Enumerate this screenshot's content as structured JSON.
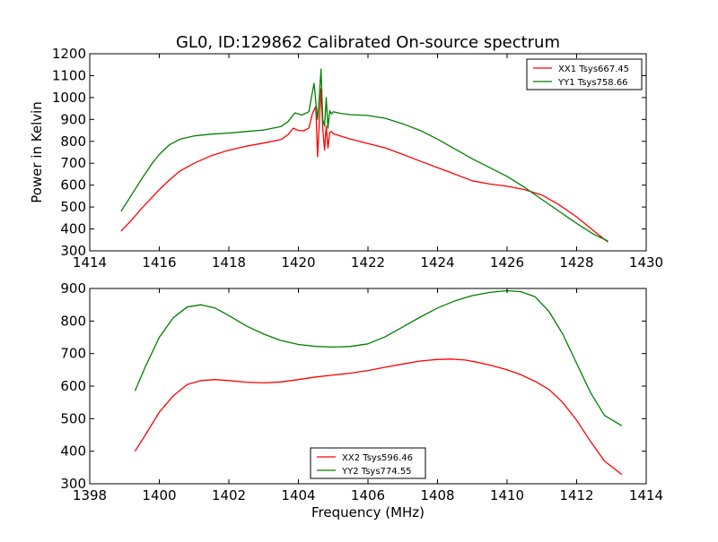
{
  "figure": {
    "title": "GL0, ID:129862 Calibrated On-source spectrum",
    "background": "#ffffff"
  },
  "chart_data": [
    {
      "type": "line",
      "title": "GL0, ID:129862 Calibrated On-source spectrum",
      "xlabel": "",
      "ylabel": "Power in Kelvin",
      "xlim": [
        1414,
        1430
      ],
      "ylim": [
        300,
        1200
      ],
      "xticks": [
        1414,
        1416,
        1418,
        1420,
        1422,
        1424,
        1426,
        1428,
        1430
      ],
      "yticks": [
        300,
        400,
        500,
        600,
        700,
        800,
        900,
        1000,
        1100,
        1200
      ],
      "grid": false,
      "legend": "top-right",
      "series": [
        {
          "name": "XX1 Tsys667.45",
          "color": "#ff0000",
          "x": [
            1414.9,
            1415.2,
            1415.5,
            1415.8,
            1416.0,
            1416.3,
            1416.6,
            1417.0,
            1417.5,
            1418.0,
            1418.5,
            1419.0,
            1419.5,
            1419.7,
            1419.85,
            1420.0,
            1420.15,
            1420.3,
            1420.4,
            1420.5,
            1420.55,
            1420.6,
            1420.65,
            1420.7,
            1420.75,
            1420.8,
            1420.85,
            1420.9,
            1420.95,
            1421.0,
            1421.2,
            1421.5,
            1422.0,
            1422.5,
            1423.0,
            1423.5,
            1424.0,
            1424.5,
            1425.0,
            1425.5,
            1426.0,
            1426.5,
            1427.0,
            1427.5,
            1428.0,
            1428.5,
            1428.9
          ],
          "y": [
            390,
            440,
            495,
            545,
            580,
            625,
            665,
            700,
            735,
            760,
            778,
            792,
            808,
            830,
            860,
            850,
            848,
            860,
            925,
            960,
            730,
            880,
            1040,
            860,
            760,
            870,
            770,
            840,
            845,
            835,
            825,
            810,
            790,
            770,
            740,
            710,
            680,
            650,
            620,
            605,
            595,
            580,
            555,
            510,
            455,
            390,
            340
          ]
        },
        {
          "name": "YY1 Tsys758.66",
          "color": "#008000",
          "x": [
            1414.9,
            1415.2,
            1415.5,
            1415.8,
            1416.0,
            1416.3,
            1416.6,
            1417.0,
            1417.5,
            1418.0,
            1418.5,
            1419.0,
            1419.5,
            1419.7,
            1419.9,
            1420.1,
            1420.3,
            1420.45,
            1420.55,
            1420.6,
            1420.65,
            1420.7,
            1420.75,
            1420.8,
            1420.85,
            1420.9,
            1420.95,
            1421.0,
            1421.2,
            1421.5,
            1422.0,
            1422.5,
            1423.0,
            1423.5,
            1424.0,
            1424.5,
            1425.0,
            1425.5,
            1426.0,
            1426.5,
            1427.0,
            1427.5,
            1428.0,
            1428.5,
            1428.9
          ],
          "y": [
            480,
            555,
            630,
            700,
            740,
            785,
            810,
            825,
            833,
            838,
            845,
            852,
            868,
            890,
            930,
            920,
            935,
            1065,
            900,
            1000,
            1130,
            900,
            870,
            1000,
            860,
            940,
            925,
            935,
            928,
            922,
            918,
            905,
            880,
            850,
            810,
            765,
            720,
            680,
            640,
            590,
            535,
            480,
            425,
            375,
            345
          ]
        }
      ]
    },
    {
      "type": "line",
      "title": "",
      "xlabel": "Frequency (MHz)",
      "ylabel": "",
      "xlim": [
        1398,
        1414
      ],
      "ylim": [
        300,
        900
      ],
      "xticks": [
        1398,
        1400,
        1402,
        1404,
        1406,
        1408,
        1410,
        1412,
        1414
      ],
      "yticks": [
        300,
        400,
        500,
        600,
        700,
        800,
        900
      ],
      "grid": false,
      "legend": "bottom-center",
      "series": [
        {
          "name": "XX2 Tsys596.46",
          "color": "#ff0000",
          "x": [
            1399.3,
            1399.6,
            1400.0,
            1400.4,
            1400.8,
            1401.2,
            1401.6,
            1402.0,
            1402.5,
            1403.0,
            1403.5,
            1404.0,
            1404.5,
            1405.0,
            1405.5,
            1406.0,
            1406.5,
            1407.0,
            1407.5,
            1408.0,
            1408.4,
            1408.8,
            1409.2,
            1409.6,
            1410.0,
            1410.4,
            1410.8,
            1411.2,
            1411.6,
            1412.0,
            1412.4,
            1412.8,
            1413.3
          ],
          "y": [
            400,
            450,
            520,
            570,
            605,
            617,
            620,
            617,
            612,
            610,
            613,
            620,
            628,
            634,
            640,
            648,
            658,
            668,
            677,
            682,
            683,
            680,
            672,
            662,
            650,
            635,
            615,
            590,
            550,
            495,
            430,
            370,
            328
          ]
        },
        {
          "name": "YY2 Tsys774.55",
          "color": "#008000",
          "x": [
            1399.3,
            1399.6,
            1400.0,
            1400.4,
            1400.8,
            1401.2,
            1401.6,
            1402.0,
            1402.5,
            1403.0,
            1403.5,
            1404.0,
            1404.5,
            1405.0,
            1405.5,
            1406.0,
            1406.5,
            1407.0,
            1407.5,
            1408.0,
            1408.5,
            1409.0,
            1409.5,
            1410.0,
            1410.4,
            1410.8,
            1411.2,
            1411.6,
            1412.0,
            1412.4,
            1412.8,
            1413.3
          ],
          "y": [
            585,
            660,
            750,
            810,
            843,
            850,
            840,
            817,
            785,
            760,
            740,
            728,
            722,
            720,
            722,
            730,
            752,
            782,
            812,
            840,
            862,
            878,
            888,
            893,
            890,
            875,
            830,
            760,
            670,
            580,
            510,
            478
          ]
        }
      ]
    }
  ]
}
